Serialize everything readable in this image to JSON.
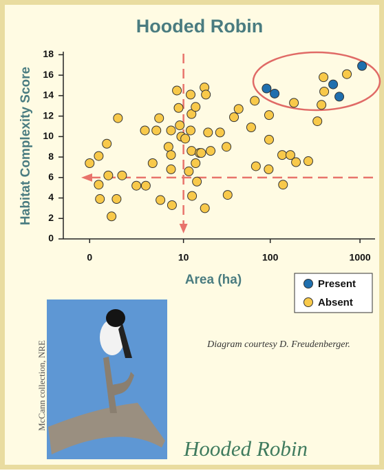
{
  "chart_data": {
    "type": "scatter",
    "title": "Hooded Robin",
    "x_label": "Area (ha)",
    "y_label": "Habitat Complexity Score",
    "xscale": "log1p",
    "xlim": [
      -0.49,
      1470
    ],
    "xticks": [
      0,
      10,
      100,
      1000
    ],
    "ylim": [
      0,
      18.3
    ],
    "yticks": [
      0,
      2,
      4,
      6,
      8,
      10,
      12,
      14,
      16,
      18
    ],
    "legend": "lower right",
    "series": [
      {
        "name": "Present",
        "color": "#1f6fae",
        "x": [
          91,
          112,
          503,
          589,
          1054
        ],
        "values": [
          14.7,
          14.2,
          15.1,
          13.9,
          16.9
        ]
      },
      {
        "name": "Absent",
        "color": "#f8c94a",
        "x": [
          0,
          0.26,
          0.55,
          0.26,
          0.3,
          0.75,
          0.99,
          1.06,
          1.29,
          0.61,
          2.3,
          3.2,
          3.1,
          4.0,
          4.5,
          4.9,
          5.1,
          6.5,
          7.0,
          7.0,
          7.0,
          7.2,
          8.3,
          8.7,
          9.0,
          9.4,
          10.5,
          11.6,
          12.2,
          12.5,
          12.7,
          14,
          14.5,
          15.6,
          16.3,
          12.2,
          12.5,
          14,
          17.8,
          18.5,
          19.6,
          21,
          18,
          27,
          32,
          33,
          39,
          44,
          61,
          69,
          67,
          96,
          97,
          97,
          136,
          139,
          168,
          194,
          184,
          266,
          336,
          373,
          393,
          400,
          715
        ],
        "values": [
          7.4,
          8.1,
          9.3,
          5.3,
          3.9,
          2.2,
          3.9,
          11.8,
          6.2,
          6.2,
          5.2,
          5.2,
          10.6,
          7.4,
          10.6,
          11.8,
          3.8,
          9.0,
          10.6,
          8.2,
          6.8,
          3.3,
          14.5,
          12.8,
          11.1,
          10.0,
          9.8,
          6.6,
          10.6,
          8.6,
          4.2,
          7.4,
          5.6,
          8.4,
          8.4,
          14.1,
          12.2,
          12.9,
          14.8,
          14.1,
          10.4,
          8.6,
          3.0,
          10.4,
          9.0,
          4.3,
          11.9,
          12.7,
          10.9,
          7.1,
          13.5,
          6.8,
          12.1,
          9.7,
          8.2,
          5.3,
          8.2,
          7.5,
          13.3,
          7.6,
          11.5,
          13.1,
          15.8,
          14.4,
          16.1
        ]
      }
    ]
  },
  "credit": "Diagram courtesy D. Freudenberger.",
  "photo_credit": "McCann collection, NRE",
  "caption": "Hooded Robin"
}
